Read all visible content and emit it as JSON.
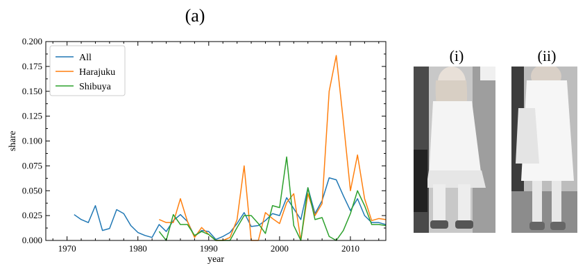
{
  "figure_label": "(a)",
  "panels": [
    {
      "label": "(i)",
      "image": "street-fashion-photo-white-lace-dress"
    },
    {
      "label": "(ii)",
      "image": "street-fashion-photo-white-dress-with-bag"
    }
  ],
  "chart_data": {
    "type": "line",
    "xlabel": "year",
    "ylabel": "share",
    "xlim": [
      1967,
      2015
    ],
    "ylim": [
      0,
      0.2
    ],
    "xticks": [
      1970,
      1980,
      1990,
      2000,
      2010
    ],
    "yticks": [
      0.0,
      0.025,
      0.05,
      0.075,
      0.1,
      0.125,
      0.15,
      0.175,
      0.2
    ],
    "ytick_labels": [
      "0.000",
      "0.025",
      "0.050",
      "0.075",
      "0.100",
      "0.125",
      "0.150",
      "0.175",
      "0.200"
    ],
    "legend": "top-left",
    "grid": false,
    "series": [
      {
        "name": "All",
        "color": "#1f77b4",
        "points": [
          [
            1971,
            0.026
          ],
          [
            1972,
            0.021
          ],
          [
            1973,
            0.018
          ],
          [
            1974,
            0.035
          ],
          [
            1975,
            0.01
          ],
          [
            1976,
            0.012
          ],
          [
            1977,
            0.031
          ],
          [
            1978,
            0.027
          ],
          [
            1979,
            0.015
          ],
          [
            1980,
            0.008
          ],
          [
            1981,
            0.005
          ],
          [
            1982,
            0.003
          ],
          [
            1983,
            0.016
          ],
          [
            1984,
            0.009
          ],
          [
            1985,
            0.02
          ],
          [
            1986,
            0.026
          ],
          [
            1987,
            0.019
          ],
          [
            1988,
            0.004
          ],
          [
            1989,
            0.01
          ],
          [
            1990,
            0.009
          ],
          [
            1991,
            0.001
          ],
          [
            1992,
            0.004
          ],
          [
            1993,
            0.008
          ],
          [
            1994,
            0.017
          ],
          [
            1995,
            0.028
          ],
          [
            1996,
            0.014
          ],
          [
            1997,
            0.015
          ],
          [
            1998,
            0.02
          ],
          [
            1999,
            0.027
          ],
          [
            2000,
            0.025
          ],
          [
            2001,
            0.043
          ],
          [
            2002,
            0.032
          ],
          [
            2003,
            0.021
          ],
          [
            2004,
            0.053
          ],
          [
            2005,
            0.027
          ],
          [
            2006,
            0.04
          ],
          [
            2007,
            0.063
          ],
          [
            2008,
            0.061
          ],
          [
            2009,
            0.045
          ],
          [
            2010,
            0.03
          ],
          [
            2011,
            0.042
          ],
          [
            2012,
            0.025
          ],
          [
            2013,
            0.018
          ],
          [
            2014,
            0.018
          ],
          [
            2015,
            0.016
          ]
        ]
      },
      {
        "name": "Harajuku",
        "color": "#ff7f0e",
        "points": [
          [
            1983,
            0.021
          ],
          [
            1984,
            0.018
          ],
          [
            1985,
            0.018
          ],
          [
            1986,
            0.042
          ],
          [
            1987,
            0.019
          ],
          [
            1988,
            0.003
          ],
          [
            1989,
            0.013
          ],
          [
            1990,
            0.006
          ],
          [
            1991,
            0.0
          ],
          [
            1992,
            0.0
          ],
          [
            1993,
            0.003
          ],
          [
            1994,
            0.021
          ],
          [
            1995,
            0.075
          ],
          [
            1996,
            0.0
          ],
          [
            1997,
            0.0
          ],
          [
            1998,
            0.028
          ],
          [
            1999,
            0.022
          ],
          [
            2000,
            0.017
          ],
          [
            2001,
            0.038
          ],
          [
            2002,
            0.047
          ],
          [
            2003,
            0.0
          ],
          [
            2004,
            0.047
          ],
          [
            2005,
            0.025
          ],
          [
            2006,
            0.037
          ],
          [
            2007,
            0.15
          ],
          [
            2008,
            0.186
          ],
          [
            2009,
            0.12
          ],
          [
            2010,
            0.05
          ],
          [
            2011,
            0.086
          ],
          [
            2012,
            0.042
          ],
          [
            2013,
            0.02
          ],
          [
            2014,
            0.022
          ],
          [
            2015,
            0.021
          ]
        ]
      },
      {
        "name": "Shibuya",
        "color": "#2ca02c",
        "points": [
          [
            1983,
            0.009
          ],
          [
            1984,
            0.0
          ],
          [
            1985,
            0.026
          ],
          [
            1986,
            0.016
          ],
          [
            1987,
            0.016
          ],
          [
            1988,
            0.005
          ],
          [
            1989,
            0.009
          ],
          [
            1990,
            0.006
          ],
          [
            1991,
            0.0
          ],
          [
            1992,
            0.0
          ],
          [
            1993,
            0.0
          ],
          [
            1994,
            0.013
          ],
          [
            1995,
            0.025
          ],
          [
            1996,
            0.025
          ],
          [
            1997,
            0.017
          ],
          [
            1998,
            0.007
          ],
          [
            1999,
            0.035
          ],
          [
            2000,
            0.033
          ],
          [
            2001,
            0.084
          ],
          [
            2002,
            0.015
          ],
          [
            2003,
            0.0
          ],
          [
            2004,
            0.053
          ],
          [
            2005,
            0.021
          ],
          [
            2006,
            0.023
          ],
          [
            2007,
            0.004
          ],
          [
            2008,
            0.0
          ],
          [
            2009,
            0.01
          ],
          [
            2010,
            0.027
          ],
          [
            2011,
            0.05
          ],
          [
            2012,
            0.035
          ],
          [
            2013,
            0.016
          ],
          [
            2014,
            0.016
          ],
          [
            2015,
            0.015
          ]
        ]
      }
    ]
  }
}
